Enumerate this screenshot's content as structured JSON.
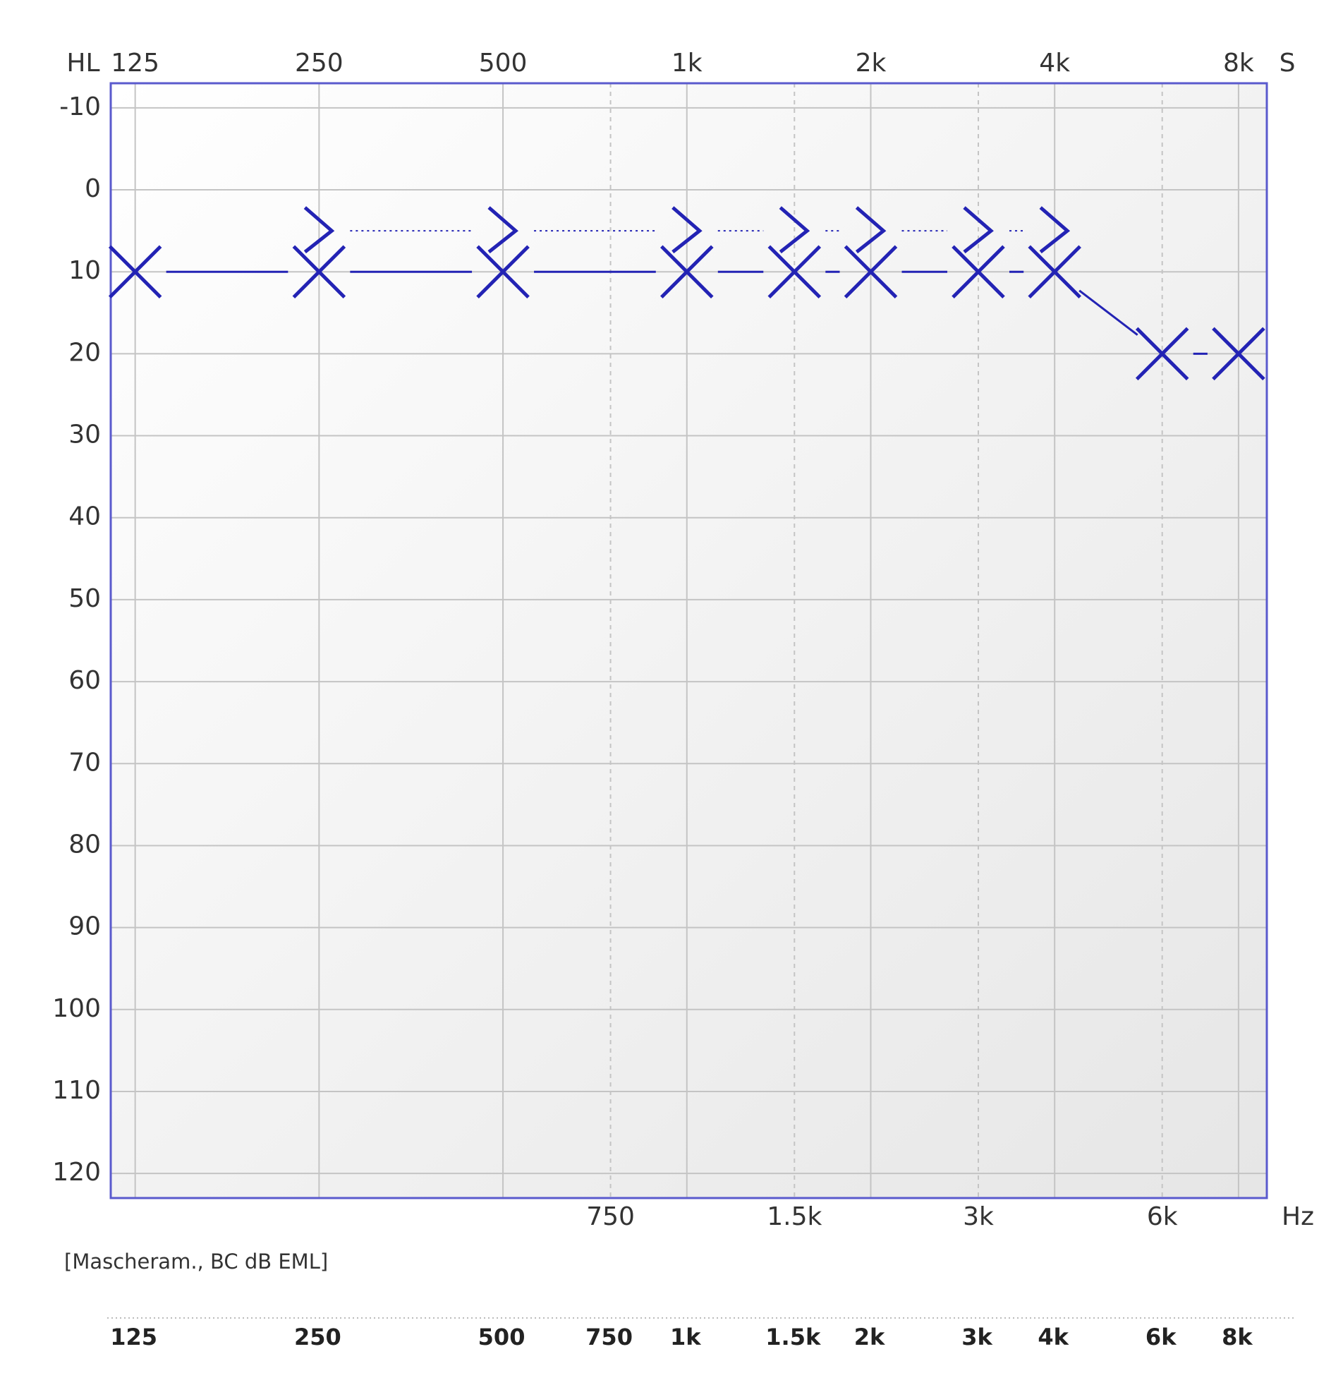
{
  "chart_data": {
    "type": "audiogram",
    "y_label": "HL",
    "corner_label": "S",
    "x_label": "Hz",
    "note": "[Mascheram., BC dB EML]",
    "log_x": true,
    "y_inverted": true,
    "grid": true,
    "xlim": [
      114,
      8900
    ],
    "ylim": [
      -13,
      123
    ],
    "xticks": [
      125,
      250,
      500,
      {
        "value": 1000,
        "label": "1k"
      },
      {
        "value": 2000,
        "label": "2k"
      },
      {
        "value": 4000,
        "label": "4k"
      },
      {
        "value": 8000,
        "label": "8k"
      }
    ],
    "xticks_minor": [
      750,
      {
        "value": 1500,
        "label": "1.5k"
      },
      {
        "value": 3000,
        "label": "3k"
      },
      {
        "value": 6000,
        "label": "6k"
      }
    ],
    "yticks": [
      -10,
      0,
      10,
      20,
      30,
      40,
      50,
      60,
      70,
      80,
      90,
      100,
      110,
      120
    ],
    "frequency_row": [
      125,
      250,
      500,
      750,
      {
        "value": 1000,
        "label": "1k"
      },
      {
        "value": 1500,
        "label": "1.5k"
      },
      {
        "value": 2000,
        "label": "2k"
      },
      {
        "value": 3000,
        "label": "3k"
      },
      {
        "value": 4000,
        "label": "4k"
      },
      {
        "value": 6000,
        "label": "6k"
      },
      {
        "value": 8000,
        "label": "8k"
      }
    ],
    "series": [
      {
        "marker": "x",
        "line": "solid",
        "color": "#2323b4",
        "x": [
          125,
          250,
          500,
          1000,
          1500,
          2000,
          3000,
          4000,
          6000,
          8000
        ],
        "values": [
          10,
          10,
          10,
          10,
          10,
          10,
          10,
          10,
          20,
          20
        ]
      },
      {
        "marker": ">",
        "line": "dotted",
        "color": "#2323b4",
        "x": [
          250,
          500,
          1000,
          1500,
          2000,
          3000,
          4000
        ],
        "values": [
          5,
          5,
          5,
          5,
          5,
          5,
          5
        ]
      }
    ]
  }
}
